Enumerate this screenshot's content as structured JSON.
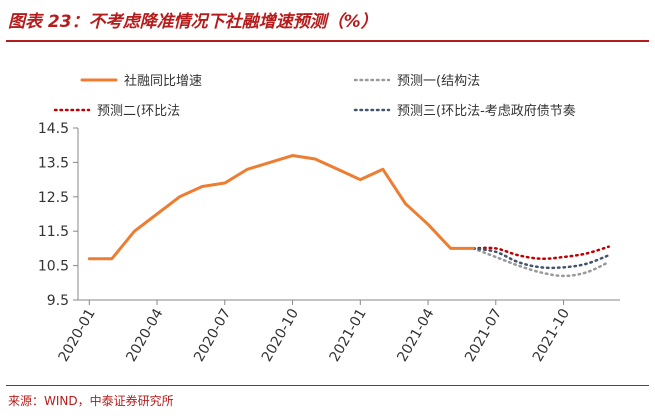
{
  "figure": {
    "title": "图表 23：不考虑降准情况下社融增速预测（%）",
    "source": "来源：WIND，中泰证券研究所"
  },
  "colors": {
    "accent": "#b71c1c",
    "actual": "#ed7d31",
    "forecast1": "#999999",
    "forecast2": "#c00000",
    "forecast3": "#44546a"
  },
  "chart_data": {
    "type": "line",
    "ylim": [
      9.5,
      14.5
    ],
    "yticks": [
      9.5,
      10.5,
      11.5,
      12.5,
      13.5,
      14.5
    ],
    "xrange": [
      "2020-01",
      "2021-12"
    ],
    "xticks": [
      "2020-01",
      "2020-04",
      "2020-07",
      "2020-10",
      "2021-01",
      "2021-04",
      "2021-07",
      "2021-10"
    ],
    "legend_position": "top",
    "series": [
      {
        "name": "社融同比增速",
        "style": "solid",
        "x": [
          "2020-01",
          "2020-02",
          "2020-03",
          "2020-04",
          "2020-05",
          "2020-06",
          "2020-07",
          "2020-08",
          "2020-09",
          "2020-10",
          "2020-11",
          "2020-12",
          "2021-01",
          "2021-02",
          "2021-03",
          "2021-04",
          "2021-05",
          "2021-06"
        ],
        "values": [
          10.7,
          10.7,
          11.5,
          12.0,
          12.5,
          12.8,
          12.9,
          13.3,
          13.5,
          13.7,
          13.6,
          13.3,
          13.0,
          13.3,
          12.3,
          11.7,
          11.0,
          11.0
        ]
      },
      {
        "name": "预测一(结构法",
        "style": "dotted",
        "x": [
          "2021-06",
          "2021-07",
          "2021-08",
          "2021-09",
          "2021-10",
          "2021-11",
          "2021-12"
        ],
        "values": [
          11.0,
          10.75,
          10.5,
          10.3,
          10.2,
          10.3,
          10.6
        ]
      },
      {
        "name": "预测二(环比法",
        "style": "dotted",
        "x": [
          "2021-06",
          "2021-07",
          "2021-08",
          "2021-09",
          "2021-10",
          "2021-11",
          "2021-12"
        ],
        "values": [
          11.0,
          11.0,
          10.8,
          10.7,
          10.75,
          10.85,
          11.05
        ]
      },
      {
        "name": "预测三(环比法-考虑政府债节奏",
        "style": "dotted",
        "x": [
          "2021-06",
          "2021-07",
          "2021-08",
          "2021-09",
          "2021-10",
          "2021-11",
          "2021-12"
        ],
        "values": [
          11.0,
          10.9,
          10.6,
          10.45,
          10.45,
          10.55,
          10.8
        ]
      }
    ]
  }
}
